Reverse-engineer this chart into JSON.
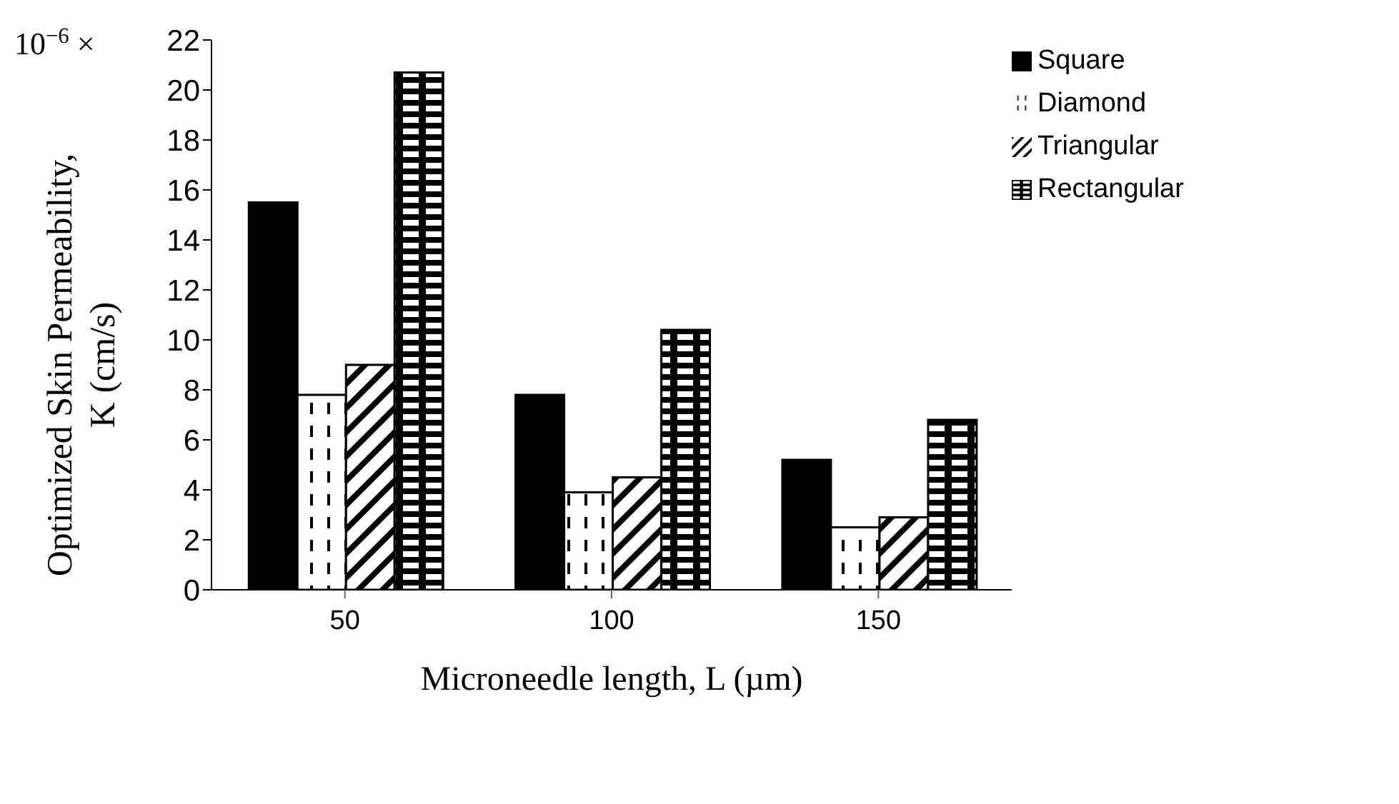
{
  "chart_data": {
    "type": "bar",
    "xlabel": "Microneedle length, L (µm)",
    "ylabel": "Optimized Skin Permeability, K (cm/s)",
    "annotations": [
      "10$^{−6}$ ×"
    ],
    "categories": [
      "50",
      "100",
      "150"
    ],
    "series": [
      {
        "name": "Square",
        "color": "#000000",
        "values": [
          15.5,
          7.8,
          5.2
        ]
      },
      {
        "name": "Diamond",
        "color": "#000000",
        "values": [
          7.8,
          3.9,
          2.5
        ]
      },
      {
        "name": "Triangular",
        "color": "#000000",
        "values": [
          9.0,
          4.5,
          2.9
        ]
      },
      {
        "name": "Rectangular",
        "color": "#000000",
        "values": [
          20.7,
          10.4,
          6.8
        ]
      }
    ],
    "ylim": [
      0,
      22
    ],
    "yticks": [
      0,
      2,
      4,
      6,
      8,
      10,
      12,
      14,
      16,
      18,
      20,
      22
    ],
    "grid": false,
    "legend": "top right"
  }
}
